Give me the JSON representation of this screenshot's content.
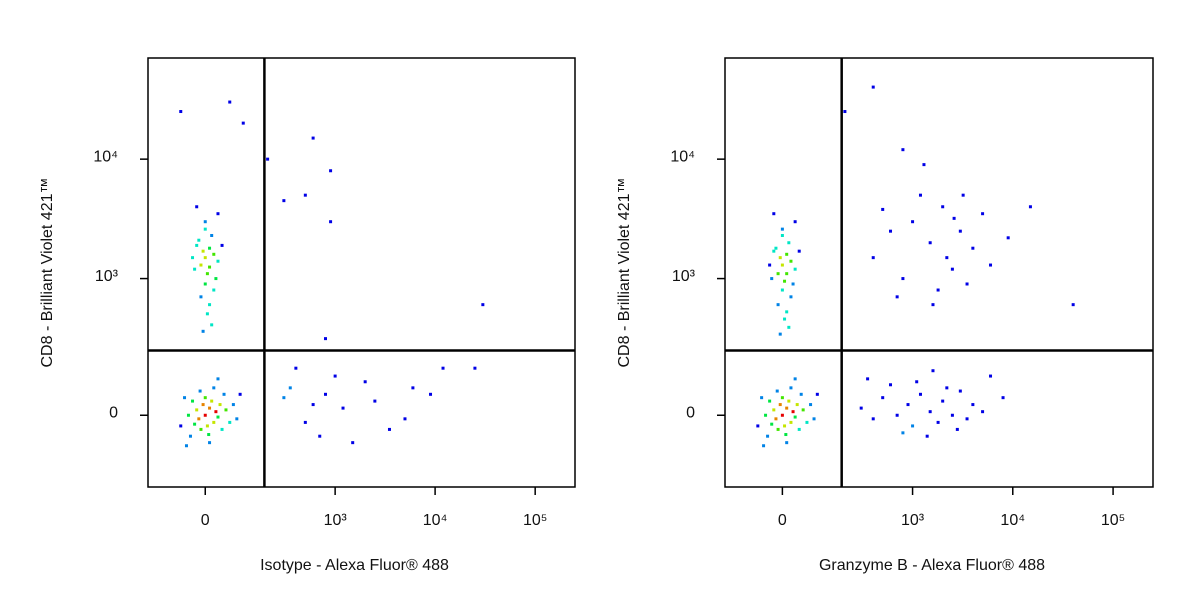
{
  "chart_data": [
    {
      "type": "scatter",
      "xlabel": "Isotype - Alexa Fluor® 488",
      "ylabel": "CD8 - Brilliant Violet 421™",
      "xlim": [
        -175,
        250000
      ],
      "ylim": [
        -270,
        70000
      ],
      "xticks": [
        0,
        {
          "value": 1000,
          "label": "10³"
        },
        {
          "value": 10000,
          "label": "10⁴"
        },
        {
          "value": 100000,
          "label": "10⁵"
        }
      ],
      "yticks": [
        0,
        {
          "value": 1000,
          "label": "10³"
        },
        {
          "value": 10000,
          "label": "10⁴"
        }
      ],
      "quadrant": {
        "x": 184,
        "y": 231
      },
      "x": [
        0,
        10,
        -15,
        20,
        -5,
        5,
        25,
        -20,
        15,
        -10,
        30,
        0,
        -25,
        35,
        -30,
        8,
        40,
        -40,
        50,
        -12,
        60,
        20,
        -35,
        45,
        70,
        -50,
        10,
        80,
        -45,
        90,
        30,
        -60,
        0,
        10,
        -10,
        20,
        -20,
        5,
        15,
        -5,
        30,
        -30,
        0,
        25,
        -15,
        10,
        40,
        -25,
        0,
        20,
        -10,
        5,
        15,
        -5,
        30,
        -20,
        10,
        0,
        300,
        500,
        800,
        1200,
        2000,
        3500,
        6000,
        12000,
        25000,
        400,
        700,
        1500,
        2500,
        5000,
        9000,
        350,
        600,
        1000,
        100,
        60,
        300,
        500,
        600,
        900,
        200,
        900,
        30000,
        800,
        -60
      ],
      "y": [
        0,
        20,
        -10,
        -20,
        30,
        -30,
        10,
        15,
        40,
        -40,
        -5,
        50,
        -25,
        30,
        40,
        -55,
        -40,
        0,
        15,
        70,
        -20,
        80,
        -60,
        60,
        30,
        50,
        -80,
        -10,
        -90,
        60,
        110,
        -30,
        1500,
        1800,
        1300,
        1600,
        1900,
        1100,
        2300,
        1700,
        1400,
        1500,
        2600,
        1000,
        2100,
        1250,
        1900,
        1200,
        3000,
        800,
        700,
        500,
        400,
        350,
        3500,
        4000,
        600,
        900,
        50,
        -20,
        60,
        20,
        100,
        -40,
        80,
        150,
        150,
        150,
        -60,
        -80,
        40,
        -10,
        60,
        80,
        30,
        120,
        20000,
        30000,
        4500,
        5000,
        15000,
        8000,
        10000,
        3000,
        600,
        300,
        25000
      ]
    },
    {
      "type": "scatter",
      "xlabel": "Granzyme B - Alexa Fluor® 488",
      "ylabel": "CD8 - Brilliant Violet 421™",
      "xlim": [
        -175,
        250000
      ],
      "ylim": [
        -270,
        70000
      ],
      "xticks": [
        0,
        {
          "value": 1000,
          "label": "10³"
        },
        {
          "value": 10000,
          "label": "10⁴"
        },
        {
          "value": 100000,
          "label": "10⁵"
        }
      ],
      "yticks": [
        0,
        {
          "value": 1000,
          "label": "10³"
        },
        {
          "value": 10000,
          "label": "10⁴"
        }
      ],
      "quadrant": {
        "x": 184,
        "y": 231
      },
      "x": [
        0,
        10,
        -15,
        20,
        -5,
        5,
        25,
        -20,
        15,
        -10,
        30,
        0,
        -25,
        35,
        -30,
        8,
        40,
        -40,
        50,
        -12,
        60,
        20,
        -35,
        45,
        70,
        -50,
        10,
        80,
        -45,
        90,
        30,
        -60,
        0,
        10,
        -10,
        20,
        -20,
        5,
        15,
        -5,
        30,
        -30,
        0,
        25,
        -15,
        10,
        40,
        -25,
        0,
        20,
        -10,
        5,
        15,
        -5,
        30,
        -20,
        10,
        0,
        300,
        400,
        500,
        700,
        900,
        1000,
        1200,
        1500,
        1800,
        2000,
        2500,
        3000,
        3500,
        4000,
        5000,
        600,
        800,
        1100,
        1400,
        2200,
        2800,
        6000,
        8000,
        350,
        1600,
        400,
        600,
        800,
        1000,
        1500,
        2000,
        2500,
        3000,
        4000,
        5000,
        700,
        1200,
        1800,
        2200,
        3500,
        6000,
        9000,
        500,
        1300,
        15000,
        800,
        40000,
        2600,
        1600,
        3200,
        200,
        400
      ],
      "y": [
        0,
        20,
        -10,
        -20,
        30,
        -30,
        10,
        15,
        40,
        -40,
        -5,
        50,
        -25,
        30,
        40,
        -55,
        -40,
        0,
        15,
        70,
        -20,
        80,
        -60,
        60,
        30,
        50,
        -80,
        -10,
        -90,
        60,
        110,
        -30,
        1300,
        1600,
        1100,
        1400,
        1700,
        950,
        2000,
        1500,
        1200,
        1300,
        2300,
        900,
        1800,
        1100,
        1700,
        1000,
        2600,
        700,
        600,
        450,
        380,
        330,
        3000,
        3500,
        520,
        800,
        20,
        -10,
        50,
        0,
        30,
        -30,
        60,
        10,
        -20,
        40,
        0,
        70,
        -10,
        30,
        10,
        90,
        -50,
        100,
        -60,
        80,
        -40,
        120,
        50,
        110,
        140,
        1500,
        2500,
        1000,
        3000,
        2000,
        4000,
        1200,
        2500,
        1800,
        3500,
        700,
        5000,
        800,
        1500,
        900,
        1300,
        2200,
        3800,
        9000,
        4000,
        12000,
        600,
        3200,
        600,
        5000,
        25000,
        40000
      ]
    }
  ]
}
